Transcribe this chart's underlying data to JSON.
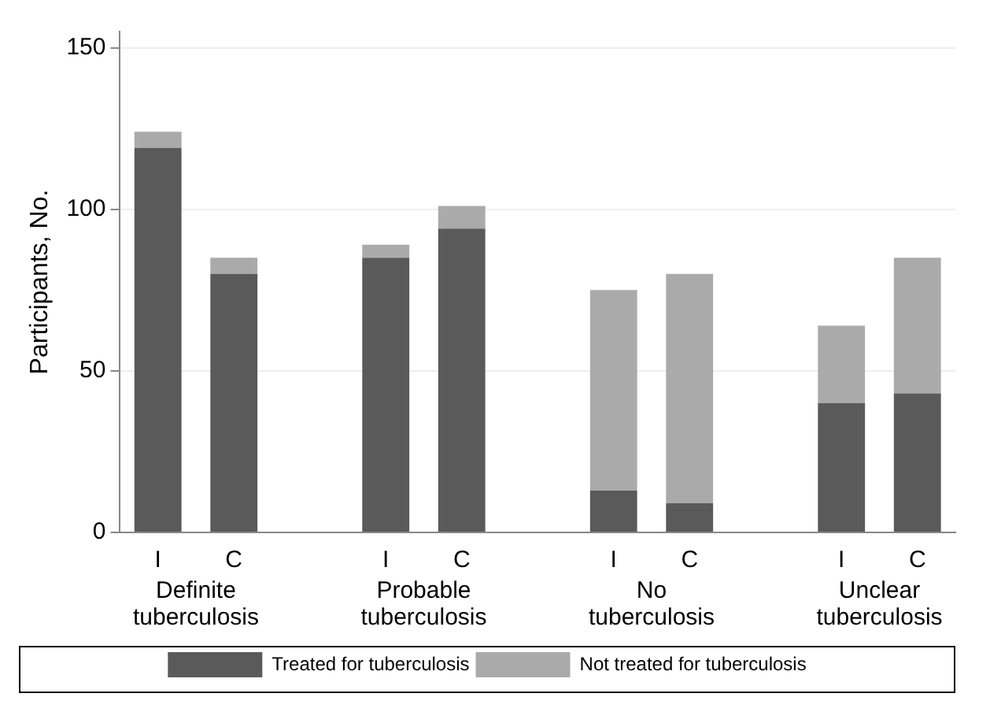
{
  "chart_data": {
    "type": "bar",
    "ylabel": "Participants, No.",
    "categories": [
      "I",
      "C",
      null,
      "I",
      "C",
      null,
      "I",
      "C",
      null,
      "I",
      "C"
    ],
    "series": [
      {
        "name": "Treated for tuberculosis",
        "color": "#5a5a5a",
        "values": [
          119,
          80,
          null,
          85,
          94,
          null,
          13,
          9,
          null,
          40,
          43
        ]
      },
      {
        "name": "Not treated for tuberculosis",
        "color": "#aaaaaa",
        "values": [
          5,
          5,
          null,
          4,
          7,
          null,
          62,
          71,
          null,
          24,
          42
        ]
      }
    ],
    "stacked": true,
    "ylim": [
      0,
      155
    ],
    "yticks": [
      0,
      50,
      100,
      150
    ],
    "grid": "y",
    "legend": "bottom",
    "annotations": [
      "Definite\ntuberculosis",
      "Probable\ntuberculosis",
      "No\ntuberculosis",
      "Unclear\ntuberculosis"
    ]
  }
}
